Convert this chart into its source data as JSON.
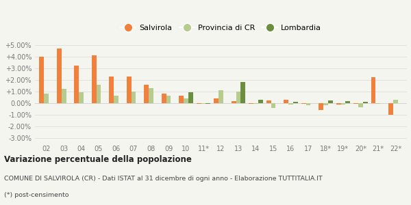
{
  "categories": [
    "02",
    "03",
    "04",
    "05",
    "06",
    "07",
    "08",
    "09",
    "10",
    "11*",
    "12",
    "13",
    "14",
    "15",
    "16",
    "17",
    "18*",
    "19*",
    "20*",
    "21*",
    "22*"
  ],
  "salvirola": [
    0.04,
    0.047,
    0.0325,
    0.041,
    0.023,
    0.023,
    0.0155,
    0.008,
    0.006,
    -0.001,
    0.0038,
    0.0018,
    -0.0005,
    0.002,
    0.0025,
    -0.001,
    -0.006,
    -0.0015,
    -0.0005,
    0.022,
    -0.0105
  ],
  "provincia_cr": [
    0.008,
    0.012,
    0.009,
    0.0155,
    0.0065,
    0.01,
    0.0125,
    0.006,
    0.004,
    -0.0005,
    0.011,
    0.01,
    -0.0005,
    -0.0045,
    -0.0015,
    -0.002,
    -0.002,
    -0.0015,
    -0.0035,
    -0.001,
    0.0025
  ],
  "lombardia": [
    0.0,
    0.0,
    0.0,
    0.0,
    0.0,
    0.0,
    0.0,
    0.0,
    0.0095,
    -0.0005,
    0.0,
    0.018,
    0.0025,
    0.0,
    0.001,
    0.0,
    0.002,
    0.0015,
    0.001,
    0.0,
    0.0
  ],
  "color_salvirola": "#f0803c",
  "color_provincia": "#b5cc8e",
  "color_lombardia": "#6b8f3e",
  "legend_labels": [
    "Salvirola",
    "Provincia di CR",
    "Lombardia"
  ],
  "title": "Variazione percentuale della popolazione",
  "subtitle1": "COMUNE DI SALVIROLA (CR) - Dati ISTAT al 31 dicembre di ogni anno - Elaborazione TUTTITALIA.IT",
  "subtitle2": "(*) post-censimento",
  "ylim_min": -0.035,
  "ylim_max": 0.057,
  "yticks": [
    -0.03,
    -0.02,
    -0.01,
    0.0,
    0.01,
    0.02,
    0.03,
    0.04,
    0.05
  ],
  "yticklabels": [
    "-3.00%",
    "-2.00%",
    "-1.00%",
    "0.00%",
    "+1.00%",
    "+2.00%",
    "+3.00%",
    "+4.00%",
    "+5.00%"
  ],
  "bg_color": "#f5f5f0",
  "bar_width": 0.27,
  "grid_color": "#dddddd",
  "tick_color": "#777777",
  "title_fontsize": 8.5,
  "subtitle_fontsize": 6.8,
  "tick_fontsize": 7.0,
  "legend_fontsize": 8.0
}
